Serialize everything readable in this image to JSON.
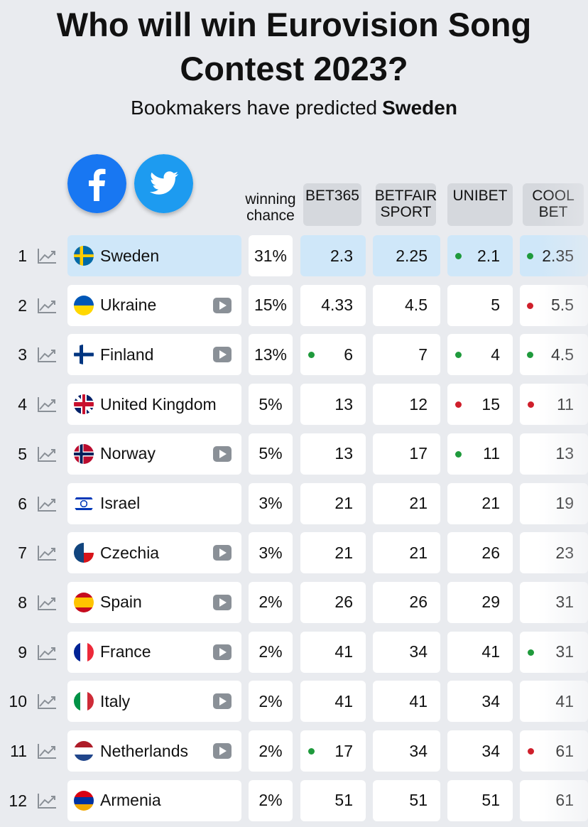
{
  "header": {
    "title": "Who will win Eurovision Song Contest 2023?",
    "subtitle": "Bookmakers have predicted",
    "subtitle_highlight": "Sweden"
  },
  "table": {
    "columns": [
      "winning chance",
      "BET365",
      "BETFAIR SPORT",
      "UNIBET",
      "COOL BET"
    ],
    "dot_colors": {
      "green": "#1f9a3c",
      "red": "#cf1f2b"
    },
    "rows": [
      {
        "rank": "1",
        "country": "Sweden",
        "chance": "31%",
        "video": false,
        "highlight": true,
        "odds": [
          {
            "value": "2.3",
            "dot": null
          },
          {
            "value": "2.25",
            "dot": null
          },
          {
            "value": "2.1",
            "dot": "green"
          },
          {
            "value": "2.35",
            "dot": "green"
          }
        ]
      },
      {
        "rank": "2",
        "country": "Ukraine",
        "chance": "15%",
        "video": true,
        "highlight": false,
        "odds": [
          {
            "value": "4.33",
            "dot": null
          },
          {
            "value": "4.5",
            "dot": null
          },
          {
            "value": "5",
            "dot": null
          },
          {
            "value": "5.5",
            "dot": "red"
          }
        ]
      },
      {
        "rank": "3",
        "country": "Finland",
        "chance": "13%",
        "video": true,
        "highlight": false,
        "odds": [
          {
            "value": "6",
            "dot": "green"
          },
          {
            "value": "7",
            "dot": null
          },
          {
            "value": "4",
            "dot": "green"
          },
          {
            "value": "4.5",
            "dot": "green"
          }
        ]
      },
      {
        "rank": "4",
        "country": "United Kingdom",
        "chance": "5%",
        "video": false,
        "highlight": false,
        "odds": [
          {
            "value": "13",
            "dot": null
          },
          {
            "value": "12",
            "dot": null
          },
          {
            "value": "15",
            "dot": "red"
          },
          {
            "value": "11",
            "dot": "red"
          }
        ]
      },
      {
        "rank": "5",
        "country": "Norway",
        "chance": "5%",
        "video": true,
        "highlight": false,
        "odds": [
          {
            "value": "13",
            "dot": null
          },
          {
            "value": "17",
            "dot": null
          },
          {
            "value": "11",
            "dot": "green"
          },
          {
            "value": "13",
            "dot": null
          }
        ]
      },
      {
        "rank": "6",
        "country": "Israel",
        "chance": "3%",
        "video": false,
        "highlight": false,
        "odds": [
          {
            "value": "21",
            "dot": null
          },
          {
            "value": "21",
            "dot": null
          },
          {
            "value": "21",
            "dot": null
          },
          {
            "value": "19",
            "dot": null
          }
        ]
      },
      {
        "rank": "7",
        "country": "Czechia",
        "chance": "3%",
        "video": true,
        "highlight": false,
        "odds": [
          {
            "value": "21",
            "dot": null
          },
          {
            "value": "21",
            "dot": null
          },
          {
            "value": "26",
            "dot": null
          },
          {
            "value": "23",
            "dot": null
          }
        ]
      },
      {
        "rank": "8",
        "country": "Spain",
        "chance": "2%",
        "video": true,
        "highlight": false,
        "odds": [
          {
            "value": "26",
            "dot": null
          },
          {
            "value": "26",
            "dot": null
          },
          {
            "value": "29",
            "dot": null
          },
          {
            "value": "31",
            "dot": null
          }
        ]
      },
      {
        "rank": "9",
        "country": "France",
        "chance": "2%",
        "video": true,
        "highlight": false,
        "odds": [
          {
            "value": "41",
            "dot": null
          },
          {
            "value": "34",
            "dot": null
          },
          {
            "value": "41",
            "dot": null
          },
          {
            "value": "31",
            "dot": "green"
          }
        ]
      },
      {
        "rank": "10",
        "country": "Italy",
        "chance": "2%",
        "video": true,
        "highlight": false,
        "odds": [
          {
            "value": "41",
            "dot": null
          },
          {
            "value": "41",
            "dot": null
          },
          {
            "value": "34",
            "dot": null
          },
          {
            "value": "41",
            "dot": null
          }
        ]
      },
      {
        "rank": "11",
        "country": "Netherlands",
        "chance": "2%",
        "video": true,
        "highlight": false,
        "odds": [
          {
            "value": "17",
            "dot": "green"
          },
          {
            "value": "34",
            "dot": null
          },
          {
            "value": "34",
            "dot": null
          },
          {
            "value": "61",
            "dot": "red"
          }
        ]
      },
      {
        "rank": "12",
        "country": "Armenia",
        "chance": "2%",
        "video": false,
        "highlight": false,
        "odds": [
          {
            "value": "51",
            "dot": null
          },
          {
            "value": "51",
            "dot": null
          },
          {
            "value": "51",
            "dot": null
          },
          {
            "value": "61",
            "dot": null
          }
        ]
      }
    ]
  }
}
